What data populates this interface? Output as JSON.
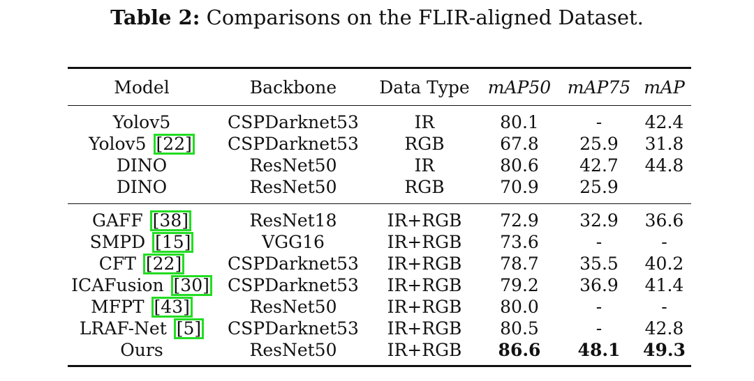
{
  "caption": {
    "label": "Table 2:",
    "text": "Comparisons on the FLIR-aligned Dataset."
  },
  "columns": [
    "Model",
    "Backbone",
    "Data Type",
    "mAP50",
    "mAP75",
    "mAP"
  ],
  "groups": [
    [
      {
        "model": "Yolov5",
        "cite": "",
        "backbone": "CSPDarknet53",
        "data_type": "IR",
        "map50": "80.1",
        "map75": "-",
        "map": "42.4"
      },
      {
        "model": "Yolov5",
        "cite": "[22]",
        "backbone": "CSPDarknet53",
        "data_type": "RGB",
        "map50": "67.8",
        "map75": "25.9",
        "map": "31.8"
      },
      {
        "model": "DINO",
        "cite": "",
        "backbone": "ResNet50",
        "data_type": "IR",
        "map50": "80.6",
        "map75": "42.7",
        "map": "44.8"
      },
      {
        "model": "DINO",
        "cite": "",
        "backbone": "ResNet50",
        "data_type": "RGB",
        "map50": "70.9",
        "map75": "25.9",
        "map": ""
      }
    ],
    [
      {
        "model": "GAFF",
        "cite": "[38]",
        "backbone": "ResNet18",
        "data_type": "IR+RGB",
        "map50": "72.9",
        "map75": "32.9",
        "map": "36.6"
      },
      {
        "model": "SMPD",
        "cite": "[15]",
        "backbone": "VGG16",
        "data_type": "IR+RGB",
        "map50": "73.6",
        "map75": "-",
        "map": "-"
      },
      {
        "model": "CFT",
        "cite": "[22]",
        "backbone": "CSPDarknet53",
        "data_type": "IR+RGB",
        "map50": "78.7",
        "map75": "35.5",
        "map": "40.2"
      },
      {
        "model": "ICAFusion",
        "cite": "[30]",
        "backbone": "CSPDarknet53",
        "data_type": "IR+RGB",
        "map50": "79.2",
        "map75": "36.9",
        "map": "41.4"
      },
      {
        "model": "MFPT",
        "cite": "[43]",
        "backbone": "ResNet50",
        "data_type": "IR+RGB",
        "map50": "80.0",
        "map75": "-",
        "map": "-"
      },
      {
        "model": "LRAF-Net",
        "cite": "[5]",
        "backbone": "CSPDarknet53",
        "data_type": "IR+RGB",
        "map50": "80.5",
        "map75": "-",
        "map": "42.8"
      },
      {
        "model": "Ours",
        "cite": "",
        "backbone": "ResNet50",
        "data_type": "IR+RGB",
        "map50": "86.6",
        "map75": "48.1",
        "map": "49.3",
        "bold_metrics": true
      }
    ]
  ],
  "colors": {
    "cite_box": "#22dd22",
    "text": "#111111"
  }
}
